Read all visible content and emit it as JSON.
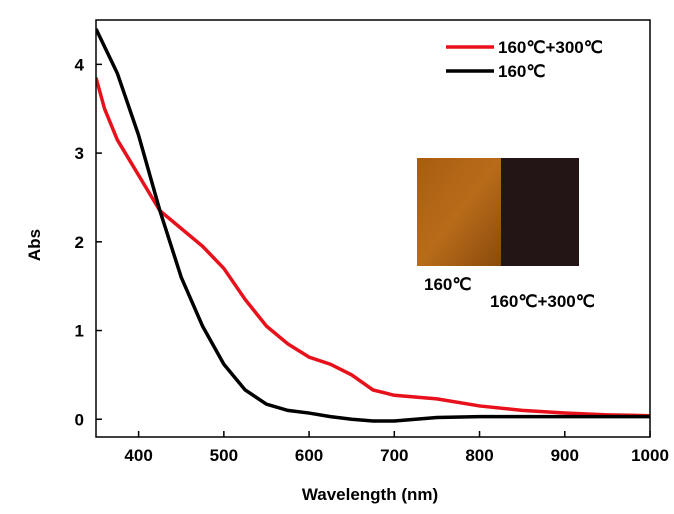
{
  "chart_data": {
    "type": "line",
    "x_label": "Wavelength (nm)",
    "y_label": "Abs",
    "x": [
      350,
      360,
      375,
      400,
      425,
      450,
      475,
      500,
      525,
      550,
      575,
      600,
      625,
      650,
      675,
      700,
      750,
      800,
      850,
      900,
      950,
      1000
    ],
    "series": [
      {
        "name": "160℃+300℃",
        "color": "#e8101a",
        "values": [
          3.85,
          3.5,
          3.15,
          2.75,
          2.35,
          2.15,
          1.95,
          1.7,
          1.35,
          1.05,
          0.85,
          0.7,
          0.62,
          0.5,
          0.33,
          0.27,
          0.23,
          0.15,
          0.1,
          0.07,
          0.05,
          0.04
        ]
      },
      {
        "name": "160℃",
        "color": "#000000",
        "values": [
          4.4,
          4.2,
          3.9,
          3.2,
          2.35,
          1.6,
          1.05,
          0.62,
          0.33,
          0.17,
          0.1,
          0.07,
          0.03,
          0.0,
          -0.02,
          -0.02,
          0.02,
          0.03,
          0.03,
          0.03,
          0.03,
          0.03
        ]
      }
    ],
    "xlim": [
      350,
      1000
    ],
    "ylim": [
      -0.2,
      4.5
    ],
    "xticks": [
      400,
      500,
      600,
      700,
      800,
      900,
      1000
    ],
    "yticks": [
      0,
      1,
      2,
      3,
      4
    ],
    "legend": "top-right",
    "inset_labels": [
      "160℃",
      "160℃+300℃"
    ]
  }
}
